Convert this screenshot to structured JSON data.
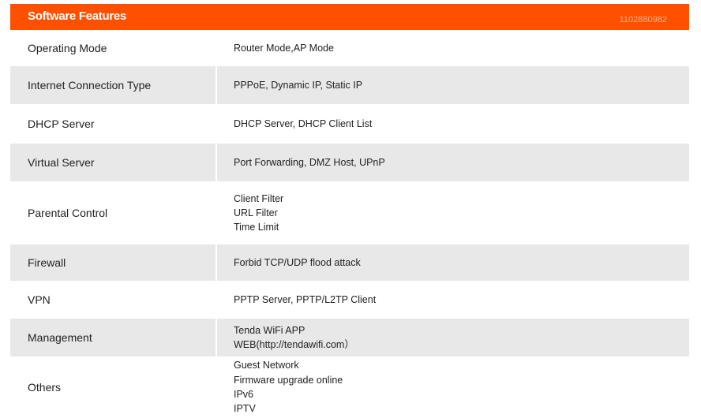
{
  "header": {
    "title": "Software Features",
    "id_watermark": "1102880982",
    "color": "#ff5000"
  },
  "rows": [
    {
      "label": "Operating Mode",
      "values": [
        "Router Mode,AP Mode"
      ]
    },
    {
      "label": "Internet Connection Type",
      "values": [
        "PPPoE, Dynamic IP, Static IP"
      ]
    },
    {
      "label": "DHCP Server",
      "values": [
        "DHCP Server, DHCP Client List"
      ]
    },
    {
      "label": "Virtual Server",
      "values": [
        "Port Forwarding, DMZ Host, UPnP"
      ]
    },
    {
      "label": "Parental Control",
      "values": [
        "Client Filter",
        "URL Filter",
        "Time Limit"
      ]
    },
    {
      "label": "Firewall",
      "values": [
        "Forbid TCP/UDP flood attack"
      ]
    },
    {
      "label": "VPN",
      "values": [
        "PPTP Server, PPTP/L2TP Client"
      ]
    },
    {
      "label": "Management",
      "values": [
        "Tenda WiFi APP",
        "WEB(http://tendawifi.com）"
      ]
    },
    {
      "label": "Others",
      "values": [
        "Guest Network",
        "Firmware upgrade online",
        "IPv6",
        "IPTV"
      ]
    }
  ]
}
